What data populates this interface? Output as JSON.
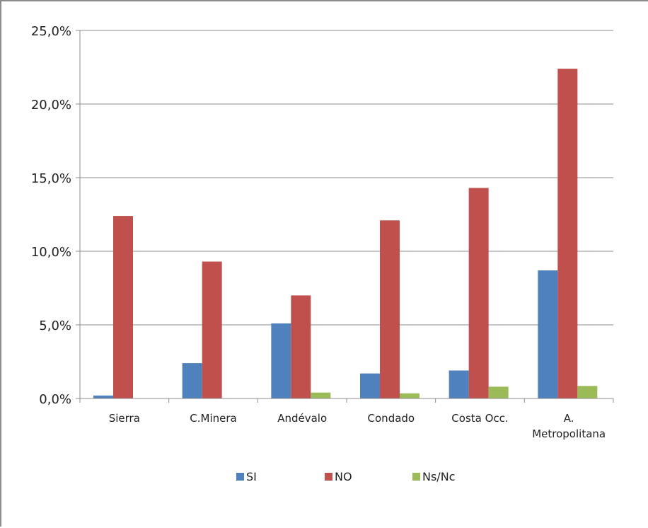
{
  "chart_data": {
    "type": "bar",
    "categories": [
      [
        "Sierra"
      ],
      [
        "C.Minera"
      ],
      [
        "Andévalo"
      ],
      [
        "Condado"
      ],
      [
        "Costa Occ."
      ],
      [
        "A.",
        "Metropolitana"
      ]
    ],
    "series": [
      {
        "name": "SI",
        "color": "#4f81bd",
        "values": [
          0.2,
          2.4,
          5.1,
          1.7,
          1.9,
          8.7
        ]
      },
      {
        "name": "NO",
        "color": "#c0504d",
        "values": [
          12.4,
          9.3,
          7.0,
          12.1,
          14.3,
          22.4
        ]
      },
      {
        "name": "Ns/Nc",
        "color": "#9bbb59",
        "values": [
          0.0,
          0.0,
          0.4,
          0.35,
          0.8,
          0.85
        ]
      }
    ],
    "ylim": [
      0,
      25
    ],
    "yticks": [
      "0,0%",
      "5,0%",
      "10,0%",
      "15,0%",
      "20,0%",
      "25,0%"
    ],
    "grid": true,
    "legend": "bottom"
  }
}
